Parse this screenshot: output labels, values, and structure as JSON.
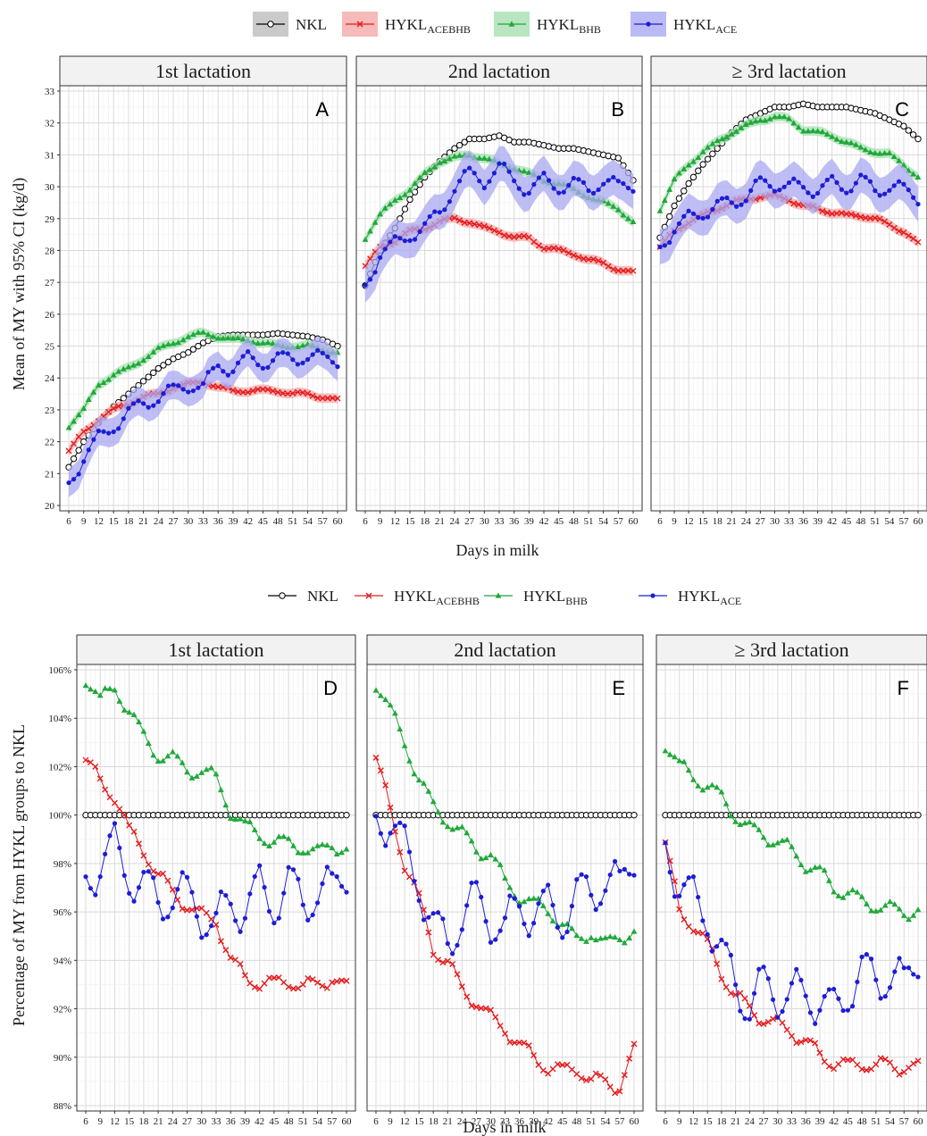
{
  "figure": {
    "top_axis_y_label": "Mean of MY with 95% CI (kg/d)",
    "bottom_axis_y_label": "Percentage of MY from HYKL groups to NKL",
    "x_label": "Days in milk"
  },
  "legend": [
    {
      "main": "NKL",
      "sub": "",
      "color": "#000000",
      "fill": "#bdbdbd",
      "marker": "circle-open"
    },
    {
      "main": "HYKL",
      "sub": "ACEBHB",
      "color": "#e41a1c",
      "fill": "#f4a9a8",
      "marker": "cross"
    },
    {
      "main": "HYKL",
      "sub": "BHB",
      "color": "#1fa83a",
      "fill": "#a8e0b1",
      "marker": "triangle"
    },
    {
      "main": "HYKL",
      "sub": "ACE",
      "color": "#1c1cd6",
      "fill": "#a9a9f2",
      "marker": "circle"
    }
  ],
  "panel_titles": [
    "1st lactation",
    "2nd lactation",
    "≥ 3rd lactation"
  ],
  "x_ticks": [
    "6",
    "9",
    "12",
    "15",
    "18",
    "21",
    "24",
    "27",
    "30",
    "33",
    "36",
    "39",
    "42",
    "45",
    "48",
    "51",
    "54",
    "57",
    "60"
  ],
  "chart_data": [
    {
      "type": "line",
      "panel": "A",
      "title": "1st lactation",
      "xlabel": "Days in milk",
      "ylabel": "Mean of MY with 95% CI (kg/d)",
      "xlim": [
        6,
        60
      ],
      "ylim": [
        20,
        33
      ],
      "y_ticks": [
        "20",
        "21",
        "22",
        "23",
        "24",
        "25",
        "26",
        "27",
        "28",
        "29",
        "30",
        "31",
        "32",
        "33"
      ],
      "x_anchors": [
        6,
        9,
        12,
        15,
        18,
        21,
        24,
        27,
        30,
        33,
        36,
        39,
        42,
        45,
        48,
        51,
        54,
        57,
        60
      ],
      "series": [
        {
          "name": "NKL",
          "values": [
            21.2,
            22.0,
            22.6,
            23.1,
            23.5,
            23.9,
            24.3,
            24.6,
            24.8,
            25.1,
            25.3,
            25.35,
            25.35,
            25.35,
            25.4,
            25.35,
            25.3,
            25.2,
            25.0
          ]
        },
        {
          "name": "HYKL_ACEBHB",
          "values": [
            21.7,
            22.3,
            22.7,
            23.0,
            23.2,
            23.4,
            23.5,
            23.7,
            23.8,
            23.9,
            23.7,
            23.6,
            23.6,
            23.6,
            23.6,
            23.5,
            23.5,
            23.4,
            23.3
          ]
        },
        {
          "name": "HYKL_BHB",
          "values": [
            22.5,
            23.0,
            23.8,
            24.1,
            24.3,
            24.6,
            24.9,
            25.1,
            25.3,
            25.4,
            25.3,
            25.2,
            25.2,
            25.1,
            25.0,
            25.0,
            25.0,
            24.9,
            24.8
          ]
        },
        {
          "name": "HYKL_ACE",
          "values": [
            20.7,
            21.5,
            22.1,
            22.5,
            22.9,
            23.2,
            23.4,
            23.6,
            23.8,
            23.7,
            24.4,
            24.3,
            24.6,
            24.5,
            24.6,
            24.6,
            24.7,
            24.6,
            24.6
          ]
        }
      ]
    },
    {
      "type": "line",
      "panel": "B",
      "title": "2nd lactation",
      "xlabel": "Days in milk",
      "ylim": [
        20,
        33
      ],
      "x_anchors": [
        6,
        9,
        12,
        15,
        18,
        21,
        24,
        27,
        30,
        33,
        36,
        39,
        42,
        45,
        48,
        51,
        54,
        57,
        60
      ],
      "series": [
        {
          "name": "NKL",
          "values": [
            26.9,
            28.0,
            28.7,
            29.6,
            30.3,
            30.8,
            31.2,
            31.5,
            31.5,
            31.6,
            31.4,
            31.4,
            31.3,
            31.2,
            31.2,
            31.1,
            31.0,
            30.9,
            30.2
          ]
        },
        {
          "name": "HYKL_ACEBHB",
          "values": [
            27.5,
            28.1,
            28.3,
            28.6,
            28.7,
            28.9,
            29.0,
            28.9,
            28.7,
            28.6,
            28.4,
            28.4,
            28.1,
            28.0,
            27.9,
            27.7,
            27.6,
            27.4,
            27.3
          ]
        },
        {
          "name": "HYKL_BHB",
          "values": [
            28.4,
            29.1,
            29.6,
            29.9,
            30.4,
            30.8,
            30.9,
            31.0,
            30.9,
            30.7,
            30.6,
            30.4,
            30.2,
            30.1,
            29.9,
            29.7,
            29.5,
            29.3,
            28.9
          ]
        },
        {
          "name": "HYKL_ACE",
          "values": [
            26.9,
            27.9,
            28.2,
            28.5,
            28.7,
            29.2,
            30.0,
            30.4,
            30.2,
            30.6,
            30.2,
            29.9,
            30.2,
            30.0,
            30.1,
            29.9,
            30.2,
            30.0,
            30.1
          ]
        }
      ]
    },
    {
      "type": "line",
      "panel": "C",
      "title": "≥ 3rd lactation",
      "xlabel": "Days in milk",
      "ylim": [
        20,
        33
      ],
      "x_anchors": [
        6,
        9,
        12,
        15,
        18,
        21,
        24,
        27,
        30,
        33,
        36,
        39,
        42,
        45,
        48,
        51,
        54,
        57,
        60
      ],
      "series": [
        {
          "name": "NKL",
          "values": [
            28.4,
            29.4,
            30.1,
            30.7,
            31.2,
            31.7,
            32.1,
            32.3,
            32.5,
            32.5,
            32.6,
            32.5,
            32.5,
            32.5,
            32.4,
            32.3,
            32.1,
            31.9,
            31.5
          ]
        },
        {
          "name": "HYKL_ACEBHB",
          "values": [
            28.1,
            28.6,
            28.9,
            29.1,
            29.3,
            29.5,
            29.6,
            29.7,
            29.7,
            29.6,
            29.4,
            29.3,
            29.2,
            29.1,
            29.1,
            29.0,
            28.8,
            28.6,
            28.2
          ]
        },
        {
          "name": "HYKL_BHB",
          "values": [
            29.3,
            30.2,
            30.7,
            31.1,
            31.4,
            31.7,
            31.9,
            32.1,
            32.2,
            32.1,
            31.8,
            31.7,
            31.6,
            31.4,
            31.2,
            31.1,
            31.0,
            30.7,
            30.3
          ]
        },
        {
          "name": "HYKL_ACE",
          "values": [
            28.1,
            28.7,
            29.0,
            29.2,
            29.4,
            29.5,
            29.7,
            30.1,
            30.1,
            30.0,
            30.0,
            29.9,
            30.1,
            30.0,
            30.2,
            29.9,
            30.0,
            29.9,
            29.7
          ]
        }
      ]
    },
    {
      "type": "line",
      "panel": "D",
      "title": "1st lactation",
      "xlabel": "Days in milk",
      "ylabel": "Percentage of MY from HYKL groups to NKL",
      "xlim": [
        6,
        60
      ],
      "ylim": [
        88,
        106
      ],
      "y_ticks": [
        "88%",
        "90%",
        "92%",
        "94%",
        "96%",
        "98%",
        "100%",
        "102%",
        "104%",
        "106%"
      ],
      "x_anchors": [
        6,
        9,
        12,
        15,
        18,
        21,
        24,
        27,
        30,
        33,
        36,
        39,
        42,
        45,
        48,
        51,
        54,
        57,
        60
      ],
      "series": [
        {
          "name": "NKL",
          "values": [
            100,
            100,
            100,
            100,
            100,
            100,
            100,
            100,
            100,
            100,
            100,
            100,
            100,
            100,
            100,
            100,
            100,
            100,
            100
          ]
        },
        {
          "name": "HYKL_ACEBHB",
          "values": [
            102.2,
            101.4,
            100.8,
            99.3,
            98.6,
            97.5,
            96.8,
            96.3,
            95.8,
            95.7,
            94.0,
            93.3,
            93.1,
            93.0,
            93.2,
            92.9,
            93.0,
            93.3,
            92.8
          ]
        },
        {
          "name": "HYKL_BHB",
          "values": [
            105.7,
            104.7,
            105.3,
            104.3,
            103.2,
            102.5,
            102.3,
            101.9,
            101.8,
            101.5,
            100.2,
            99.5,
            99.2,
            98.9,
            98.8,
            98.7,
            98.4,
            98.8,
            98.6
          ]
        },
        {
          "name": "HYKL_ACE",
          "values": [
            97.4,
            98.0,
            98.6,
            97.6,
            97.0,
            96.4,
            96.8,
            96.6,
            96.0,
            95.4,
            96.4,
            96.2,
            96.9,
            96.4,
            97.1,
            96.4,
            96.9,
            96.8,
            97.9
          ]
        }
      ]
    },
    {
      "type": "line",
      "panel": "E",
      "title": "2nd lactation",
      "xlabel": "Days in milk",
      "ylim": [
        88,
        106
      ],
      "x_anchors": [
        6,
        9,
        12,
        15,
        18,
        21,
        24,
        27,
        30,
        33,
        36,
        39,
        42,
        45,
        48,
        51,
        54,
        57,
        60
      ],
      "series": [
        {
          "name": "NKL",
          "values": [
            100,
            100,
            100,
            100,
            100,
            100,
            100,
            100,
            100,
            100,
            100,
            100,
            100,
            100,
            100,
            100,
            100,
            100,
            100
          ]
        },
        {
          "name": "HYKL_ACEBHB",
          "values": [
            102.3,
            100.2,
            98.0,
            96.5,
            94.5,
            93.9,
            92.8,
            92.3,
            91.6,
            91.2,
            90.5,
            90.0,
            89.6,
            89.4,
            89.6,
            89.0,
            89.0,
            88.8,
            90.2
          ]
        },
        {
          "name": "HYKL_BHB",
          "values": [
            105.5,
            104.3,
            103.0,
            101.5,
            100.3,
            99.8,
            99.2,
            98.6,
            98.4,
            97.2,
            96.7,
            96.3,
            96.1,
            95.5,
            94.8,
            95.2,
            94.6,
            95.0,
            95.2
          ]
        },
        {
          "name": "HYKL_ACE",
          "values": [
            99.9,
            99.8,
            98.5,
            97.3,
            95.3,
            94.7,
            95.9,
            96.4,
            95.8,
            95.2,
            96.3,
            96.0,
            96.1,
            95.8,
            96.6,
            96.8,
            97.4,
            96.9,
            98.6
          ]
        }
      ]
    },
    {
      "type": "line",
      "panel": "F",
      "title": "≥ 3rd lactation",
      "xlabel": "Days in milk",
      "ylim": [
        88,
        106
      ],
      "x_anchors": [
        6,
        9,
        12,
        15,
        18,
        21,
        24,
        27,
        30,
        33,
        36,
        39,
        42,
        45,
        48,
        51,
        54,
        57,
        60
      ],
      "series": [
        {
          "name": "NKL",
          "values": [
            100,
            100,
            100,
            100,
            100,
            100,
            100,
            100,
            100,
            100,
            100,
            100,
            100,
            100,
            100,
            100,
            100,
            100,
            100
          ]
        },
        {
          "name": "HYKL_ACEBHB",
          "values": [
            98.8,
            96.0,
            95.5,
            94.6,
            93.5,
            92.5,
            92.0,
            91.6,
            91.3,
            91.1,
            90.6,
            90.1,
            89.8,
            89.6,
            89.8,
            89.6,
            89.7,
            89.6,
            89.5
          ]
        },
        {
          "name": "HYKL_BHB",
          "values": [
            103.0,
            102.0,
            101.6,
            101.2,
            100.7,
            100.0,
            99.4,
            99.2,
            98.9,
            98.5,
            98.0,
            97.6,
            97.0,
            96.8,
            96.4,
            96.3,
            96.1,
            96.0,
            96.1
          ]
        },
        {
          "name": "HYKL_ACE",
          "values": [
            98.8,
            97.2,
            96.4,
            95.9,
            94.2,
            93.0,
            92.2,
            92.9,
            92.7,
            92.5,
            92.6,
            92.4,
            91.8,
            92.8,
            93.4,
            93.3,
            93.4,
            92.9,
            94.4
          ]
        }
      ]
    }
  ]
}
